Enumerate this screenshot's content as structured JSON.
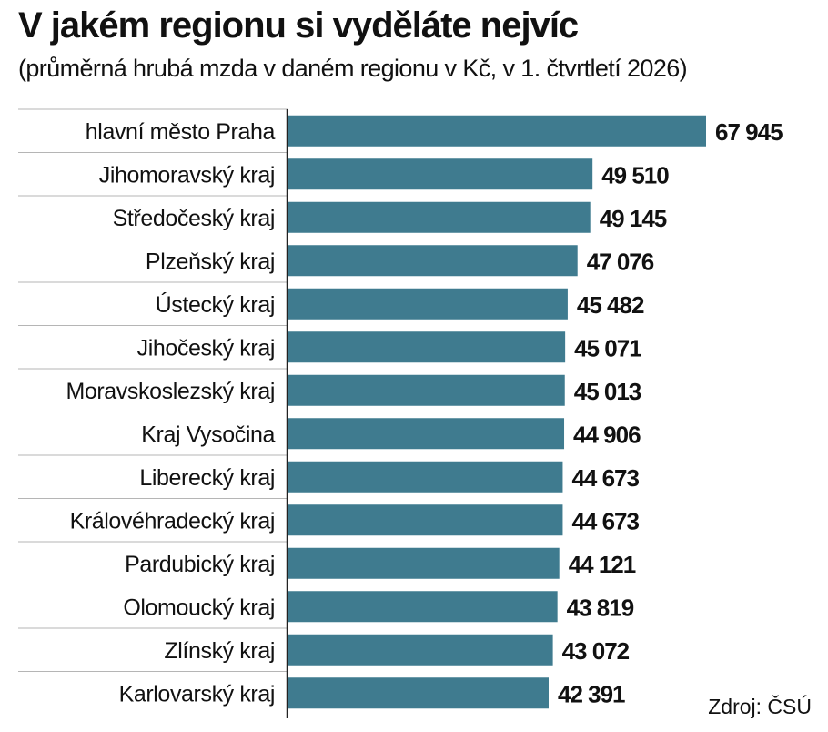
{
  "title": "V jakém regionu si vyděláte nejvíc",
  "subtitle": "(průměrná hrubá mzda v daném regionu v Kč, v 1. čtvrtletí 2026)",
  "source": "Zdroj: ČSÚ",
  "colors": {
    "bar": "#3f7b8f",
    "text": "#111111",
    "gridline": "#b5b5b5",
    "axis": "#222222"
  },
  "chart_data": {
    "type": "bar",
    "orientation": "horizontal",
    "title": "V jakém regionu si vyděláte nejvíc",
    "subtitle": "(průměrná hrubá mzda v daném regionu v Kč, v 1. čtvrtletí 2026)",
    "categories": [
      "hlavní město Praha",
      "Jihomoravský kraj",
      "Středočeský kraj",
      "Plzeňský kraj",
      "Ústecký kraj",
      "Jihočeský kraj",
      "Moravskoslezský kraj",
      "Kraj Vysočina",
      "Liberecký kraj",
      "Královéhradecký kraj",
      "Pardubický kraj",
      "Olomoucký kraj",
      "Zlínský kraj",
      "Karlovarský kraj"
    ],
    "values": [
      67945,
      49510,
      49145,
      47076,
      45482,
      45071,
      45013,
      44906,
      44673,
      44673,
      44121,
      43819,
      43072,
      42391
    ],
    "value_labels": [
      "67 945",
      "49 510",
      "49 145",
      "47 076",
      "45 482",
      "45 071",
      "45 013",
      "44 906",
      "44 673",
      "44 673",
      "44 121",
      "43 819",
      "43 072",
      "42 391"
    ],
    "xlim": [
      0,
      67945
    ],
    "grid": false,
    "legend": "none"
  }
}
